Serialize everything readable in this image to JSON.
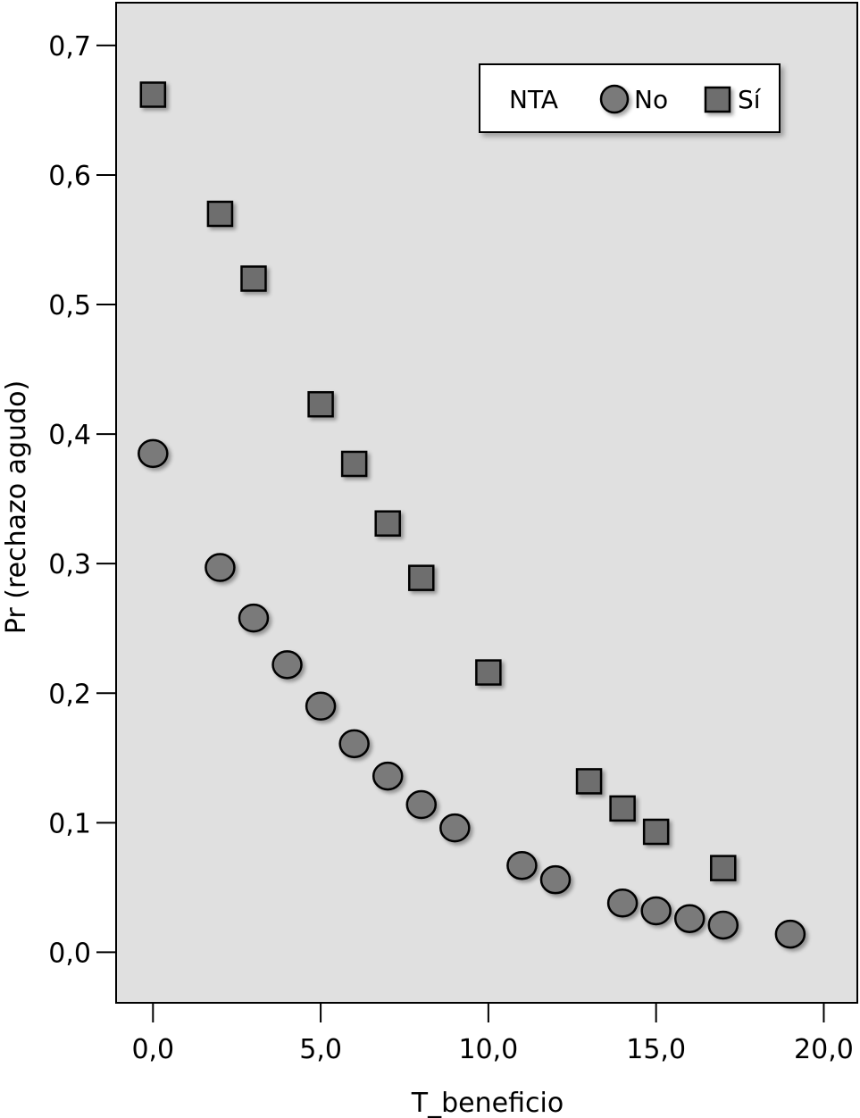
{
  "chart_data": {
    "type": "scatter",
    "xlabel": "T_beneficio",
    "ylabel": "Pr (rechazo agudo)",
    "xlim": [
      -1.1,
      21.0
    ],
    "ylim": [
      -0.039,
      0.733
    ],
    "x_ticks": [
      0,
      5,
      10,
      15,
      20
    ],
    "x_tick_labels": [
      "0,0",
      "5,0",
      "10,0",
      "15,0",
      "20,0"
    ],
    "y_ticks": [
      0.0,
      0.1,
      0.2,
      0.3,
      0.4,
      0.5,
      0.6,
      0.7
    ],
    "y_tick_labels": [
      "0,0",
      "0,1",
      "0,2",
      "0,3",
      "0,4",
      "0,5",
      "0,6",
      "0,7"
    ],
    "grid": false,
    "plot_background": "#e0e0e0",
    "legend": {
      "title": "NTA",
      "position": "top-right"
    },
    "series": [
      {
        "name": "No",
        "marker": "circle",
        "color": "#7a7a7a",
        "x": [
          0,
          2,
          3,
          4,
          5,
          6,
          7,
          8,
          9,
          11,
          12,
          14,
          15,
          16,
          17,
          19
        ],
        "y": [
          0.385,
          0.297,
          0.258,
          0.222,
          0.19,
          0.161,
          0.136,
          0.114,
          0.096,
          0.067,
          0.056,
          0.038,
          0.032,
          0.026,
          0.021,
          0.014
        ]
      },
      {
        "name": "Sí",
        "marker": "square",
        "color": "#6e6e6e",
        "x": [
          0,
          2,
          3,
          5,
          6,
          7,
          8,
          10,
          13,
          14,
          15,
          17
        ],
        "y": [
          0.662,
          0.57,
          0.52,
          0.423,
          0.377,
          0.331,
          0.289,
          0.216,
          0.132,
          0.111,
          0.093,
          0.065
        ]
      }
    ]
  }
}
